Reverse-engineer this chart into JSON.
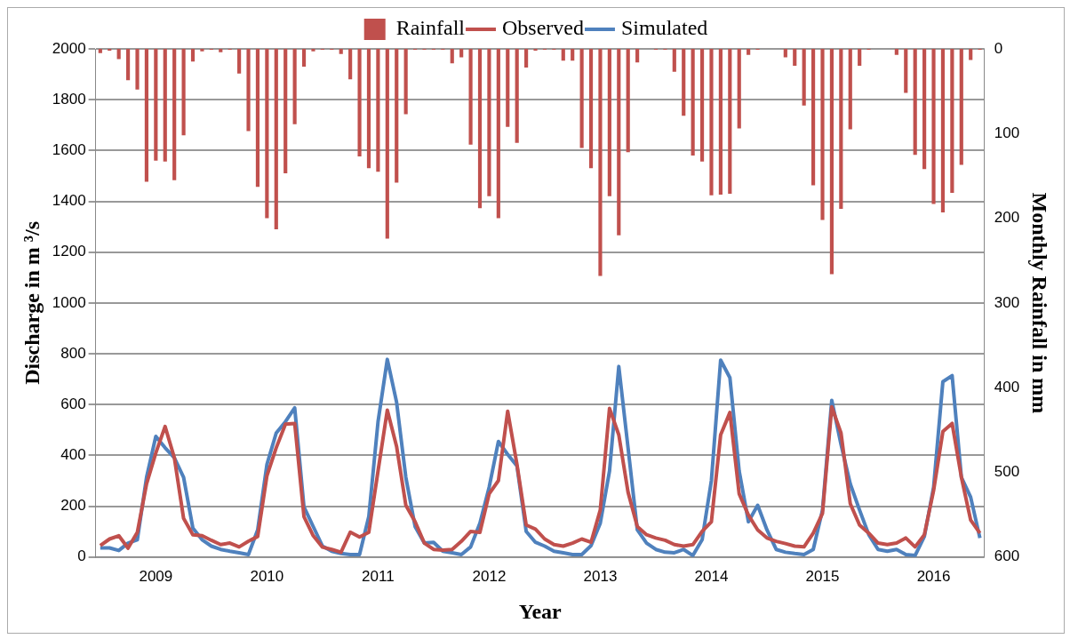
{
  "chart_data": {
    "type": "line",
    "xlabel": "Year",
    "ylabel": "Discharge in m ³/s",
    "y2label": "Monthly Rainfall in mm",
    "categories": [
      null,
      null,
      null,
      null,
      null,
      null,
      "2009",
      null,
      null,
      null,
      null,
      null,
      null,
      null,
      null,
      null,
      null,
      null,
      "2010",
      null,
      null,
      null,
      null,
      null,
      null,
      null,
      null,
      null,
      null,
      null,
      "2011",
      null,
      null,
      null,
      null,
      null,
      null,
      null,
      null,
      null,
      null,
      null,
      "2012",
      null,
      null,
      null,
      null,
      null,
      null,
      null,
      null,
      null,
      null,
      null,
      "2013",
      null,
      null,
      null,
      null,
      null,
      null,
      null,
      null,
      null,
      null,
      null,
      "2014",
      null,
      null,
      null,
      null,
      null,
      null,
      null,
      null,
      null,
      null,
      null,
      "2015",
      null,
      null,
      null,
      null,
      null,
      null,
      null,
      null,
      null,
      null,
      null,
      "2016",
      null,
      null,
      null,
      null,
      null
    ],
    "series": [
      {
        "name": "Rainfall",
        "type": "bar",
        "axis": "y2",
        "color": "#c0504d",
        "values": [
          5,
          2,
          12,
          37,
          48,
          157,
          132,
          133,
          155,
          102,
          15,
          3,
          1,
          4,
          1,
          29,
          97,
          163,
          200,
          213,
          147,
          89,
          21,
          3,
          1,
          1,
          6,
          36,
          127,
          141,
          145,
          224,
          158,
          77,
          1,
          1,
          1,
          1,
          17,
          10,
          113,
          188,
          174,
          200,
          92,
          111,
          22,
          2,
          1,
          1,
          14,
          14,
          117,
          141,
          268,
          174,
          220,
          122,
          16,
          0,
          1,
          1,
          27,
          79,
          126,
          133,
          173,
          172,
          171,
          94,
          7,
          1,
          0,
          0,
          10,
          20,
          67,
          161,
          202,
          266,
          189,
          95,
          20,
          1,
          0,
          0,
          7,
          52,
          125,
          142,
          183,
          193,
          170,
          137,
          13,
          1
        ]
      },
      {
        "name": "Observed",
        "color": "#c0504d",
        "values": [
          45,
          71,
          84,
          35,
          97,
          288,
          410,
          514,
          391,
          152,
          88,
          84,
          66,
          49,
          55,
          40,
          62,
          81,
          320,
          430,
          523,
          526,
          159,
          84,
          39,
          30,
          19,
          98,
          79,
          97,
          339,
          578,
          436,
          204,
          139,
          55,
          30,
          27,
          30,
          62,
          101,
          97,
          249,
          301,
          574,
          365,
          126,
          110,
          71,
          49,
          43,
          55,
          71,
          58,
          185,
          585,
          481,
          255,
          120,
          88,
          75,
          66,
          49,
          43,
          49,
          101,
          139,
          481,
          569,
          249,
          165,
          107,
          75,
          62,
          53,
          43,
          40,
          94,
          172,
          591,
          488,
          210,
          126,
          94,
          55,
          49,
          55,
          75,
          40,
          88,
          262,
          494,
          526,
          314,
          146,
          94
        ]
      },
      {
        "name": "Simulated",
        "color": "#4f81bd",
        "values": [
          36,
          36,
          26,
          55,
          68,
          314,
          475,
          430,
          391,
          314,
          114,
          68,
          43,
          30,
          23,
          17,
          10,
          107,
          365,
          488,
          533,
          587,
          197,
          120,
          43,
          23,
          14,
          10,
          10,
          159,
          533,
          778,
          610,
          314,
          120,
          55,
          58,
          23,
          17,
          10,
          40,
          133,
          275,
          455,
          404,
          359,
          101,
          58,
          43,
          23,
          17,
          10,
          10,
          45,
          133,
          339,
          750,
          430,
          107,
          55,
          30,
          19,
          17,
          30,
          6,
          68,
          301,
          775,
          706,
          339,
          139,
          204,
          107,
          30,
          19,
          14,
          10,
          30,
          185,
          617,
          443,
          288,
          185,
          88,
          30,
          23,
          30,
          10,
          6,
          81,
          275,
          690,
          714,
          314,
          236,
          75
        ]
      }
    ],
    "ylim": [
      0,
      2000
    ],
    "yticks": [
      0,
      200,
      400,
      600,
      800,
      1000,
      1200,
      1400,
      1600,
      1800,
      2000
    ],
    "y2lim": [
      600,
      0
    ],
    "y2ticks": [
      0,
      100,
      200,
      300,
      400,
      500,
      600
    ],
    "grid": "y",
    "legend": "top"
  }
}
